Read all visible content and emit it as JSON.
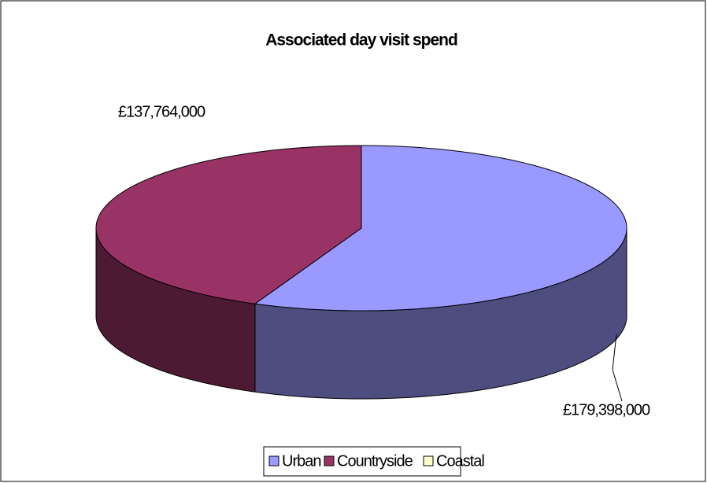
{
  "chart_data": {
    "type": "pie3d",
    "title": "Associated day visit spend",
    "categories": [
      "Urban",
      "Countryside",
      "Coastal"
    ],
    "values": [
      179398000,
      137764000,
      0
    ],
    "value_labels": [
      "£179,398,000",
      "£137,764,000",
      null
    ],
    "colors": [
      "#9999ff",
      "#993366",
      "#ffffcc"
    ],
    "legend": "bottom"
  }
}
